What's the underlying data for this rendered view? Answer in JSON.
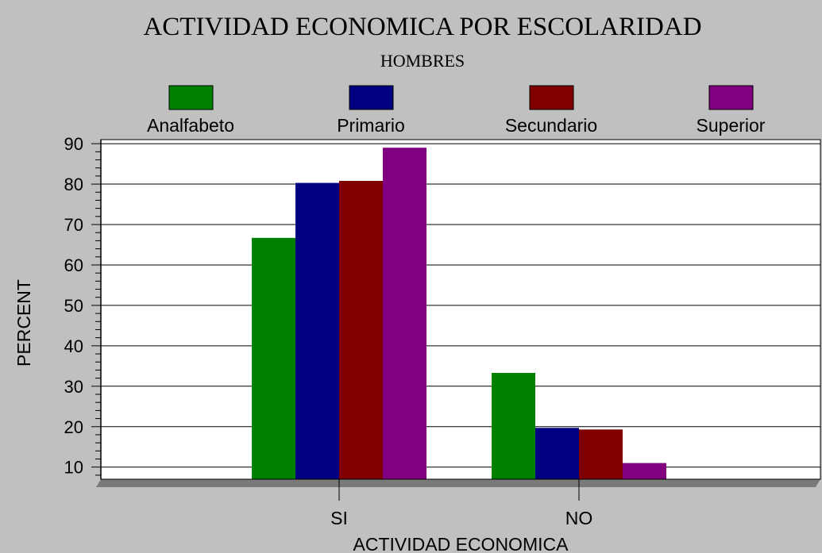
{
  "chart_data": {
    "type": "bar",
    "title": "ACTIVIDAD ECONOMICA POR ESCOLARIDAD",
    "subtitle": "HOMBRES",
    "xlabel": "ACTIVIDAD ECONOMICA",
    "ylabel": "PERCENT",
    "categories": [
      "SI",
      "NO"
    ],
    "series": [
      {
        "name": "Analfabeto",
        "color": "#008000",
        "values": [
          66.7,
          33.3
        ]
      },
      {
        "name": "Primario",
        "color": "#000080",
        "values": [
          80.3,
          19.7
        ]
      },
      {
        "name": "Secundario",
        "color": "#800000",
        "values": [
          80.8,
          19.3
        ]
      },
      {
        "name": "Superior",
        "color": "#800080",
        "values": [
          89.0,
          11.0
        ]
      }
    ],
    "ylim": [
      7,
      91
    ],
    "yticks": [
      10,
      20,
      30,
      40,
      50,
      60,
      70,
      80,
      90
    ],
    "grid": true,
    "legend_position": "top"
  }
}
